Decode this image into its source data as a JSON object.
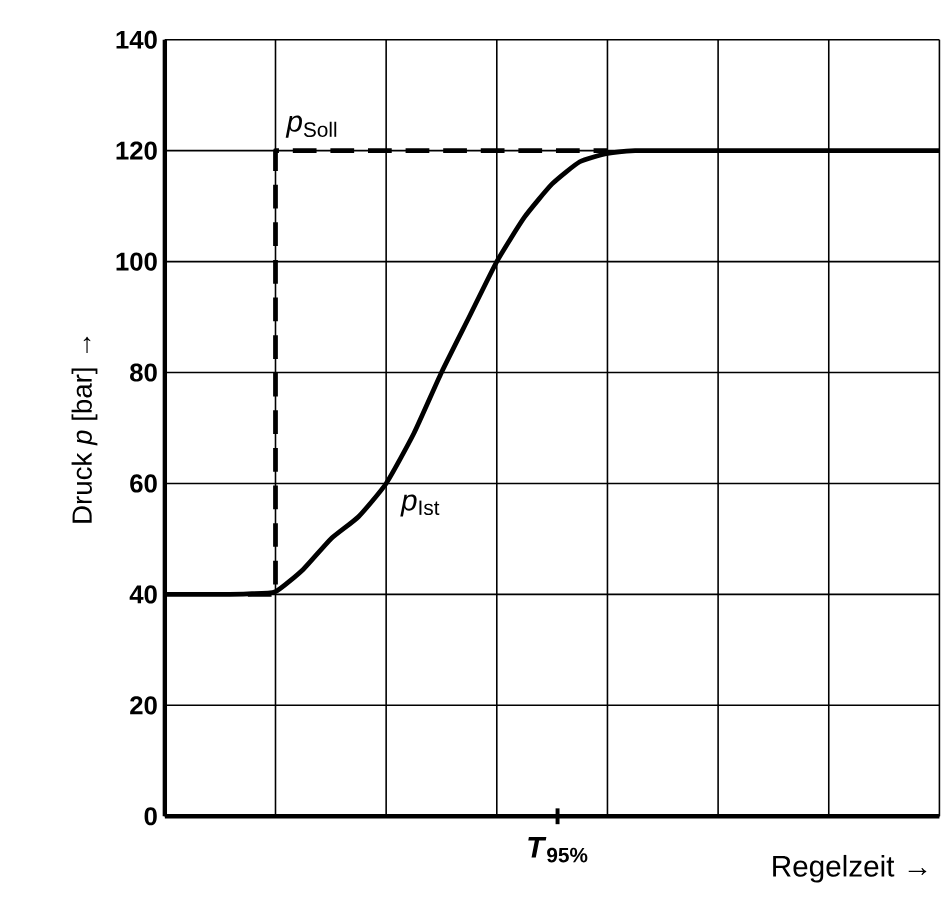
{
  "chart_data": {
    "type": "line",
    "xlabel": "Regelzeit →",
    "ylabel": "Druck *p* [bar] →",
    "annotations": [
      "*T*$_{95%}$"
    ],
    "categories": [
      null,
      null,
      null,
      null,
      null,
      null,
      null,
      null,
      null,
      null,
      null,
      null,
      null,
      null,
      null,
      null,
      null,
      null,
      null,
      null,
      null,
      null,
      null,
      null,
      null,
      null,
      null,
      null,
      null
    ],
    "ylim": [
      0,
      140
    ],
    "yticks": [
      0,
      20,
      40,
      60,
      80,
      100,
      120,
      140
    ],
    "tick_labels": "y",
    "grid": true,
    "series": [
      {
        "name": "*p*$_{Soll}$",
        "type": "step",
        "color": "#000000",
        "line_style": "dashed",
        "values": [
          null,
          null,
          null,
          40,
          120,
          120,
          120,
          120,
          120,
          120,
          120,
          120,
          120,
          120,
          120,
          120,
          120,
          null,
          null,
          null,
          null,
          null,
          null,
          null,
          null,
          null,
          null,
          null,
          null
        ]
      },
      {
        "name": "*p*$_{Ist}$",
        "color": "#000000",
        "line_style": "solid",
        "values": [
          40,
          40,
          40,
          40.1,
          40.5,
          44.5,
          50,
          54,
          60,
          69,
          80,
          90,
          100,
          108,
          114,
          118,
          119.5,
          120,
          120,
          120,
          120,
          120,
          120,
          120,
          120,
          120,
          120,
          120,
          120
        ]
      }
    ]
  }
}
